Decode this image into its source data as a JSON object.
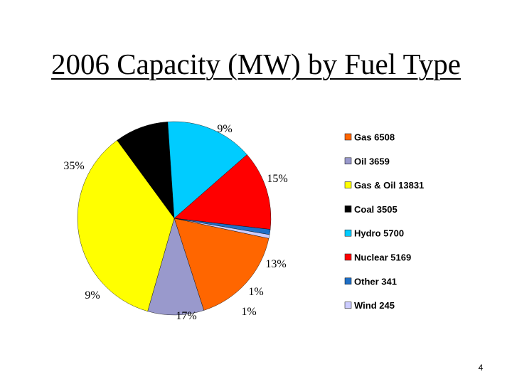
{
  "slide": {
    "title": "2006 Capacity (MW) by Fuel Type",
    "page_number": "4"
  },
  "chart_data": {
    "type": "pie",
    "title": "2006 Capacity (MW) by Fuel Type",
    "slices": [
      {
        "label": "Gas",
        "legend": "Gas 6508",
        "value": 6508,
        "pct_label": "17%",
        "color": "#FF6600"
      },
      {
        "label": "Oil",
        "legend": "Oil 3659",
        "value": 3659,
        "pct_label": "9%",
        "color": "#9999CC"
      },
      {
        "label": "Gas & Oil",
        "legend": "Gas & Oil 13831",
        "value": 13831,
        "pct_label": "35%",
        "color": "#FFFF00"
      },
      {
        "label": "Coal",
        "legend": "Coal 3505",
        "value": 3505,
        "pct_label": "9%",
        "color": "#000000"
      },
      {
        "label": "Hydro",
        "legend": "Hydro 5700",
        "value": 5700,
        "pct_label": "15%",
        "color": "#00CCFF"
      },
      {
        "label": "Nuclear",
        "legend": "Nuclear 5169",
        "value": 5169,
        "pct_label": "13%",
        "color": "#FF0000"
      },
      {
        "label": "Other",
        "legend": "Other 341",
        "value": 341,
        "pct_label": "1%",
        "color": "#1F6FC6"
      },
      {
        "label": "Wind",
        "legend": "Wind 245",
        "value": 245,
        "pct_label": "1%",
        "color": "#CCCCFF"
      }
    ],
    "legend_position": "right"
  }
}
